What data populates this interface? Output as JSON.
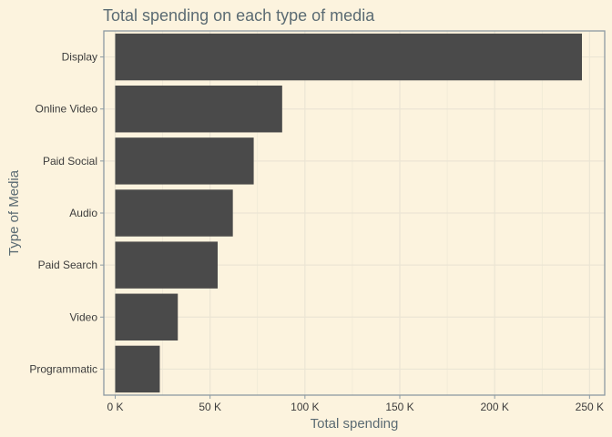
{
  "chart_data": {
    "type": "bar",
    "orientation": "horizontal",
    "title": "Total spending on each type of media",
    "xlabel": "Total spending",
    "ylabel": "Type of Media",
    "categories": [
      "Display",
      "Online Video",
      "Paid Social",
      "Audio",
      "Paid Search",
      "Video",
      "Programmatic"
    ],
    "values": [
      246000,
      88000,
      73000,
      62000,
      54000,
      33000,
      23500
    ],
    "xlim": [
      0,
      256000
    ],
    "xticks": [
      0,
      50000,
      100000,
      150000,
      200000,
      250000
    ],
    "xtick_labels": [
      "0 K",
      "50 K",
      "100 K",
      "150 K",
      "200 K",
      "250 K"
    ],
    "grid": true,
    "legend": "none",
    "colors": {
      "background": "#fcf3de",
      "bar": "#4a4a4a",
      "grid": "#ebe5d4",
      "axis": "#8c9aa2",
      "title": "#5b6b73",
      "tick_text": "#3c3c3c"
    }
  }
}
